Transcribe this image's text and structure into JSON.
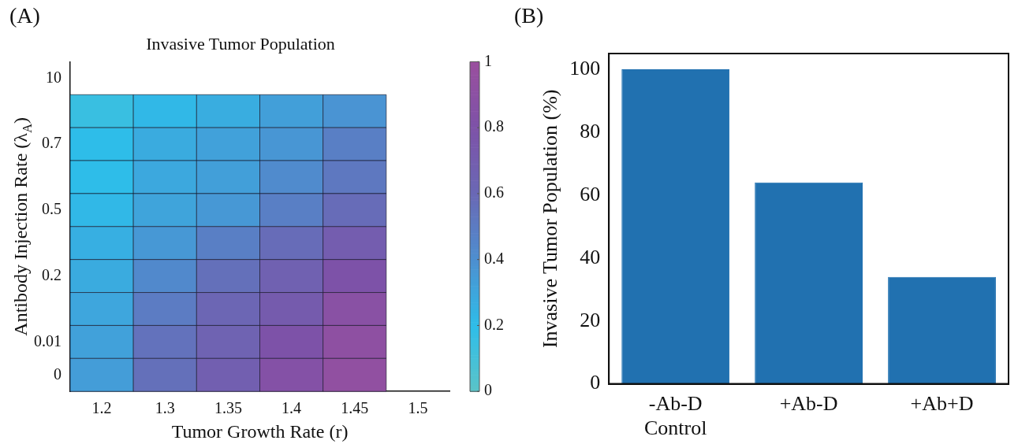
{
  "chart_data": [
    {
      "type": "heatmap",
      "title": "Invasive Tumor Population",
      "xlabel": "Tumor Growth Rate (r)",
      "ylabel": "Antibody Injection Rate (λ$_{A}$)",
      "annotations": [
        "(A)"
      ],
      "categories": [
        "1.2",
        "1.3",
        "1.35",
        "1.4",
        "1.45",
        "1.5"
      ],
      "y_categories": [
        "10",
        null,
        "0.7",
        null,
        "0.5",
        null,
        "0.2",
        null,
        "0.01",
        "0"
      ],
      "cells": [
        [
          null,
          null,
          null,
          null,
          null,
          null
        ],
        [
          0.15,
          0.22,
          0.27,
          0.33,
          0.38,
          null
        ],
        [
          0.2,
          0.28,
          0.32,
          0.37,
          0.48,
          null
        ],
        [
          0.2,
          0.29,
          0.33,
          0.42,
          0.52,
          null
        ],
        [
          0.22,
          0.31,
          0.36,
          0.48,
          0.58,
          null
        ],
        [
          0.26,
          0.36,
          0.48,
          0.58,
          0.7,
          null
        ],
        [
          0.28,
          0.43,
          0.56,
          0.66,
          0.8,
          null
        ],
        [
          0.3,
          0.5,
          0.62,
          0.72,
          0.88,
          null
        ],
        [
          0.32,
          0.55,
          0.65,
          0.8,
          0.92,
          null
        ],
        [
          0.34,
          0.56,
          0.68,
          0.85,
          0.94,
          null
        ]
      ],
      "clim": [
        0,
        1
      ],
      "cticks": [
        0,
        0.2,
        0.4,
        0.6,
        0.8,
        1
      ]
    },
    {
      "type": "bar",
      "ylabel": "Invasive Tumor Population (%)",
      "annotations": [
        "(B)"
      ],
      "categories": [
        "-Ab-D\nControl",
        "+Ab-D",
        "+Ab+D"
      ],
      "values": [
        100,
        64,
        34
      ],
      "color": "#2171b0",
      "ylim": [
        0,
        105
      ],
      "yticks": [
        0,
        20,
        40,
        60,
        80,
        100
      ]
    }
  ]
}
